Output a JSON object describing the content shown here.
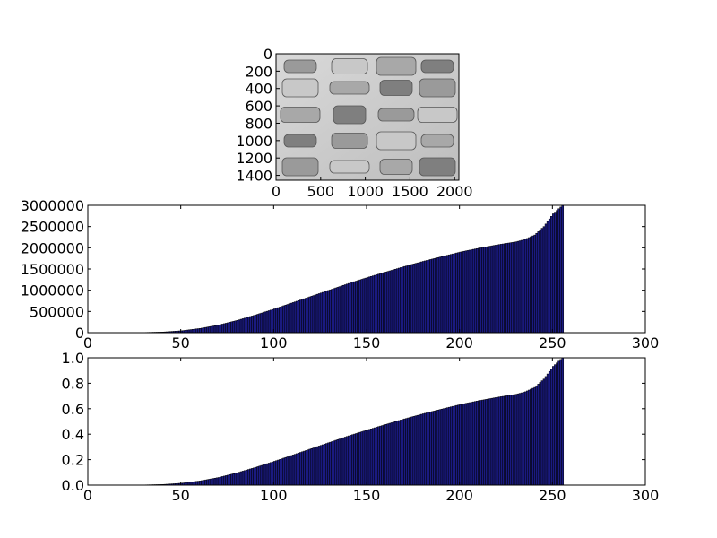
{
  "chart_data": [
    {
      "type": "image",
      "image_desc": "grayscale photo of wine corks",
      "xticks": [
        "0",
        "500",
        "1000",
        "1500",
        "2000"
      ],
      "yticks": [
        "0",
        "200",
        "400",
        "600",
        "800",
        "1000",
        "1200",
        "1400"
      ],
      "xlim": [
        0,
        2048
      ],
      "ylim": [
        1456,
        0
      ]
    },
    {
      "type": "bar",
      "title": "",
      "xlabel": "",
      "ylabel": "",
      "xlim": [
        0,
        300
      ],
      "ylim": [
        0,
        3000000
      ],
      "xticks": [
        "0",
        "50",
        "100",
        "150",
        "200",
        "250",
        "300"
      ],
      "yticks": [
        "0",
        "500000",
        "1000000",
        "1500000",
        "2000000",
        "2500000",
        "3000000"
      ],
      "bar_color": "#1a1a80",
      "edge_color": "#000000",
      "grid": false,
      "x": [
        0,
        10,
        20,
        30,
        40,
        50,
        60,
        70,
        80,
        90,
        100,
        110,
        120,
        130,
        140,
        150,
        160,
        170,
        180,
        190,
        200,
        210,
        220,
        230,
        235,
        240,
        245,
        250,
        255
      ],
      "values": [
        0,
        0,
        2000,
        5000,
        15000,
        45000,
        100000,
        180000,
        290000,
        420000,
        560000,
        710000,
        860000,
        1010000,
        1160000,
        1300000,
        1430000,
        1560000,
        1680000,
        1790000,
        1900000,
        1990000,
        2070000,
        2140000,
        2200000,
        2300000,
        2500000,
        2800000,
        3000000
      ]
    },
    {
      "type": "bar",
      "title": "",
      "xlabel": "",
      "ylabel": "",
      "xlim": [
        0,
        300
      ],
      "ylim": [
        0,
        1.0
      ],
      "xticks": [
        "0",
        "50",
        "100",
        "150",
        "200",
        "250",
        "300"
      ],
      "yticks": [
        "0.0",
        "0.2",
        "0.4",
        "0.6",
        "0.8",
        "1.0"
      ],
      "bar_color": "#1a1a80",
      "edge_color": "#000000",
      "grid": false,
      "x": [
        0,
        10,
        20,
        30,
        40,
        50,
        60,
        70,
        80,
        90,
        100,
        110,
        120,
        130,
        140,
        150,
        160,
        170,
        180,
        190,
        200,
        210,
        220,
        230,
        235,
        240,
        245,
        250,
        255
      ],
      "values": [
        0,
        0,
        0.0007,
        0.0017,
        0.005,
        0.015,
        0.033,
        0.06,
        0.097,
        0.14,
        0.187,
        0.237,
        0.287,
        0.337,
        0.387,
        0.433,
        0.477,
        0.52,
        0.56,
        0.597,
        0.633,
        0.663,
        0.69,
        0.713,
        0.733,
        0.767,
        0.833,
        0.933,
        1.0
      ]
    }
  ]
}
